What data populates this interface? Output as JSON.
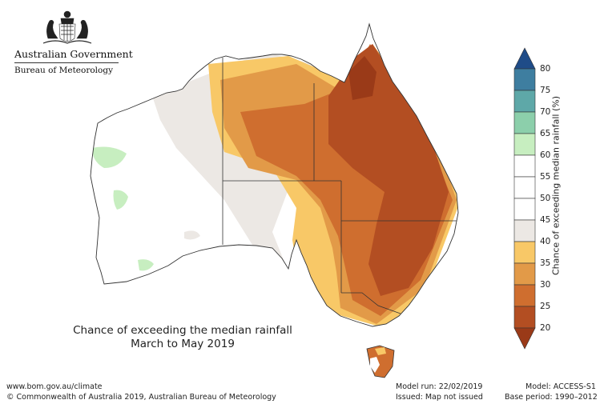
{
  "header": {
    "government": "Australian Government",
    "bureau": "Bureau of Meteorology"
  },
  "map": {
    "title_line1": "Chance of exceeding the median rainfall",
    "title_line2": "March to May 2019"
  },
  "legend": {
    "title": "Chance of exceeding median rainfall (%)",
    "ticks": [
      "80",
      "75",
      "70",
      "65",
      "60",
      "55",
      "50",
      "45",
      "40",
      "35",
      "30",
      "25",
      "20"
    ],
    "colors": {
      "20-25": "#b34e22",
      "25-30": "#cf6e2f",
      "30-35": "#e29a48",
      "35-40": "#f8c867",
      "40-45": "#ece8e4",
      "45-50": "#ffffff",
      "50-55": "#ffffff",
      "55-60": "#ffffff",
      "60-65": "#c7eec0",
      "65-70": "#8ccfab",
      "70-75": "#5ea8a8",
      "75-80": "#3e7ea0",
      "80+": "#1f4c88",
      "below-20": "#9a3a18"
    }
  },
  "footer": {
    "url": "www.bom.gov.au/climate",
    "copyright": "© Commonwealth of Australia 2019, Australian Bureau of Meteorology",
    "model_run": "Model run: 22/02/2019",
    "issued": "Issued: Map not issued",
    "model": "Model: ACCESS-S1",
    "base_period": "Base period: 1990–2012"
  }
}
